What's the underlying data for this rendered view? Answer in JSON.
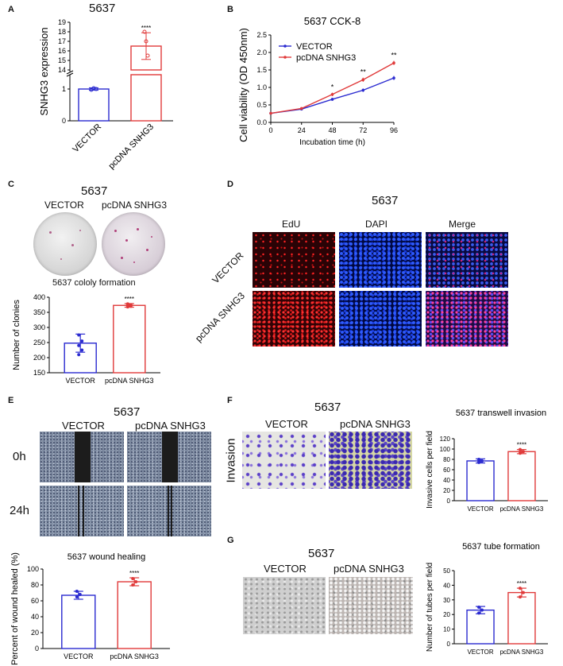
{
  "panels": {
    "A": {
      "letter": "A",
      "title": "5637"
    },
    "B": {
      "letter": "B"
    },
    "C": {
      "letter": "C",
      "title": "5637",
      "col_labels": [
        "VECTOR",
        "pcDNA SNHG3"
      ],
      "caption": "5637 cololy formation"
    },
    "D": {
      "letter": "D",
      "title": "5637",
      "col_labels": [
        "EdU",
        "DAPI",
        "Merge"
      ],
      "row_labels": [
        "VECTOR",
        "pcDNA SNHG3"
      ]
    },
    "E": {
      "letter": "E",
      "title": "5637",
      "col_labels": [
        "VECTOR",
        "pcDNA SNHG3"
      ],
      "row_labels": [
        "0h",
        "24h"
      ]
    },
    "F": {
      "letter": "F",
      "title": "5637",
      "col_labels": [
        "VECTOR",
        "pcDNA SNHG3"
      ],
      "row_label": "Invasion"
    },
    "G": {
      "letter": "G",
      "title": "5637",
      "col_labels": [
        "VECTOR",
        "pcDNA SNHG3"
      ]
    }
  },
  "colors": {
    "vector": "#2a2ad0",
    "snhg3": "#e03a3a",
    "edu": "#d01818",
    "dapi": "#1a3ad8"
  },
  "chart_data": [
    {
      "id": "A",
      "type": "bar",
      "title": "",
      "xlabel": "",
      "ylabel": "SNHG3 expression",
      "categories": [
        "VECTOR",
        "pcDNA SNHG3"
      ],
      "values": [
        1.0,
        16.5
      ],
      "errors": [
        0.08,
        1.4
      ],
      "points": [
        [
          0.95,
          1.05,
          1.0
        ],
        [
          18,
          17,
          15.5
        ]
      ],
      "ylim_low": [
        0,
        1
      ],
      "ylim_high": [
        14,
        19
      ],
      "yticks_low": [
        0,
        1
      ],
      "yticks_high": [
        14,
        15,
        16,
        17,
        18,
        19
      ],
      "significance": "****"
    },
    {
      "id": "B",
      "type": "line",
      "title": "5637 CCK-8",
      "xlabel": "Incubation time (h)",
      "ylabel": "Cell viability (OD 450nm)",
      "x": [
        0,
        24,
        48,
        72,
        96
      ],
      "xlim": [
        0,
        96
      ],
      "ylim": [
        0,
        2.5
      ],
      "yticks": [
        "0.0",
        "0.5",
        "1.0",
        "1.5",
        "2.0",
        "2.5"
      ],
      "legend_position": "top-left",
      "series": [
        {
          "name": "VECTOR",
          "values": [
            0.26,
            0.38,
            0.66,
            0.92,
            1.27
          ],
          "errors": [
            0.02,
            0.03,
            0.04,
            0.05,
            0.06
          ]
        },
        {
          "name": "pcDNA SNHG3",
          "values": [
            0.26,
            0.4,
            0.8,
            1.22,
            1.7
          ],
          "errors": [
            0.02,
            0.03,
            0.05,
            0.06,
            0.06
          ]
        }
      ],
      "annotations": [
        {
          "x": 48,
          "text": "*"
        },
        {
          "x": 72,
          "text": "**"
        },
        {
          "x": 96,
          "text": "**"
        }
      ]
    },
    {
      "id": "C",
      "type": "bar",
      "title": "",
      "xlabel": "",
      "ylabel": "Number of clonies",
      "categories": [
        "VECTOR",
        "pcDNA SNHG3"
      ],
      "values": [
        248,
        373
      ],
      "errors": [
        30,
        6
      ],
      "points": [
        [
          275,
          255,
          240,
          225,
          210
        ],
        [
          378,
          375,
          372,
          370,
          368
        ]
      ],
      "ylim": [
        150,
        400
      ],
      "yticks": [
        150,
        200,
        250,
        300,
        350,
        400
      ],
      "significance": "****"
    },
    {
      "id": "E",
      "type": "bar",
      "title": "5637 wound healing",
      "xlabel": "",
      "ylabel": "Percent of wound healed (%)",
      "categories": [
        "VECTOR",
        "pcDNA SNHG3"
      ],
      "values": [
        67,
        84
      ],
      "errors": [
        5,
        5
      ],
      "points": [
        [
          72,
          68,
          65
        ],
        [
          88,
          84,
          80
        ]
      ],
      "ylim": [
        0,
        100
      ],
      "yticks": [
        0,
        20,
        40,
        60,
        80,
        100
      ],
      "significance": "****"
    },
    {
      "id": "F",
      "type": "bar",
      "title": "5637 transwell invasion",
      "xlabel": "",
      "ylabel": "Invasive cells per field",
      "categories": [
        "VECTOR",
        "pcDNA SNHG3"
      ],
      "values": [
        77,
        95
      ],
      "errors": [
        4,
        4
      ],
      "points": [
        [
          80,
          77,
          74
        ],
        [
          99,
          95,
          92
        ]
      ],
      "ylim": [
        0,
        120
      ],
      "yticks": [
        0,
        20,
        40,
        60,
        80,
        100,
        120
      ],
      "significance": "****"
    },
    {
      "id": "G",
      "type": "bar",
      "title": "5637 tube formation",
      "xlabel": "",
      "ylabel": "Number of tubes per field",
      "categories": [
        "VECTOR",
        "pcDNA SNHG3"
      ],
      "values": [
        23,
        35
      ],
      "errors": [
        2.5,
        3
      ],
      "points": [
        [
          25,
          23,
          21
        ],
        [
          38,
          35,
          32
        ]
      ],
      "ylim": [
        0,
        50
      ],
      "yticks": [
        0,
        10,
        20,
        30,
        40,
        50
      ],
      "significance": "****"
    }
  ]
}
